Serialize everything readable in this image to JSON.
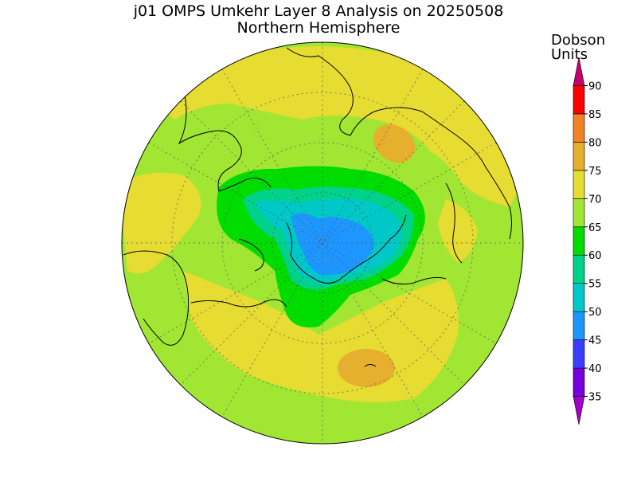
{
  "title": "j01 OMPS Umkehr Layer 8 Analysis on 20250508",
  "subtitle": "Northern Hemisphere",
  "colorbar": {
    "unit_line1": "Dobson",
    "unit_line2": "Units",
    "ticks": [
      "35",
      "40",
      "45",
      "50",
      "55",
      "60",
      "65",
      "70",
      "75",
      "80",
      "85",
      "90"
    ],
    "bands": [
      {
        "from": 30,
        "to": 35,
        "color": "#a000c8"
      },
      {
        "from": 35,
        "to": 40,
        "color": "#7800dc"
      },
      {
        "from": 40,
        "to": 45,
        "color": "#3c3cff"
      },
      {
        "from": 45,
        "to": 50,
        "color": "#1e96ff"
      },
      {
        "from": 50,
        "to": 55,
        "color": "#00c8c8"
      },
      {
        "from": 55,
        "to": 60,
        "color": "#00d28c"
      },
      {
        "from": 60,
        "to": 65,
        "color": "#00dc00"
      },
      {
        "from": 65,
        "to": 70,
        "color": "#a0e632"
      },
      {
        "from": 70,
        "to": 75,
        "color": "#e6dc32"
      },
      {
        "from": 75,
        "to": 80,
        "color": "#e6af2d"
      },
      {
        "from": 80,
        "to": 85,
        "color": "#f08228"
      },
      {
        "from": 85,
        "to": 90,
        "color": "#fa0000"
      },
      {
        "from": 90,
        "to": 95,
        "color": "#c8006e"
      }
    ]
  },
  "map": {
    "projection": "north-polar-stereographic",
    "background_color": "#a0e632"
  }
}
